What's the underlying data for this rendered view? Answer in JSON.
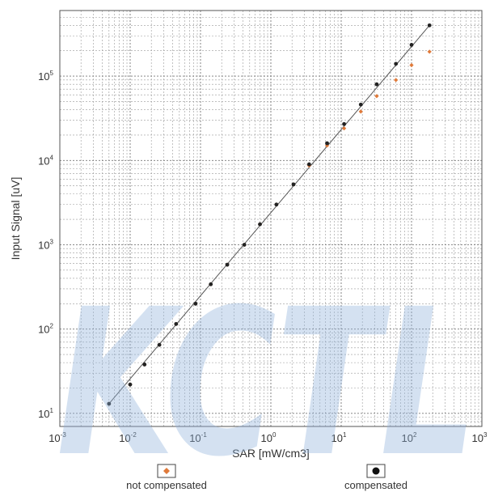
{
  "chart_data": {
    "type": "scatter",
    "xlabel": "SAR [mW/cm3]",
    "ylabel": "Input Signal [uV]",
    "x_scale": "log",
    "y_scale": "log",
    "xlim": [
      0.001,
      1000
    ],
    "ylim": [
      7,
      600000
    ],
    "x_ticks": [
      {
        "base": "10",
        "exp": "-3",
        "value": 0.001
      },
      {
        "base": "10",
        "exp": "-2",
        "value": 0.01
      },
      {
        "base": "10",
        "exp": "-1",
        "value": 0.1
      },
      {
        "base": "10",
        "exp": "0",
        "value": 1
      },
      {
        "base": "10",
        "exp": "1",
        "value": 10
      },
      {
        "base": "10",
        "exp": "2",
        "value": 100
      },
      {
        "base": "10",
        "exp": "3",
        "value": 1000
      }
    ],
    "y_ticks": [
      {
        "base": "10",
        "exp": "1",
        "value": 10
      },
      {
        "base": "10",
        "exp": "2",
        "value": 100
      },
      {
        "base": "10",
        "exp": "3",
        "value": 1000
      },
      {
        "base": "10",
        "exp": "4",
        "value": 10000
      },
      {
        "base": "10",
        "exp": "5",
        "value": 100000
      }
    ],
    "grid": true,
    "legend_position": "bottom",
    "series": [
      {
        "name": "not compensated",
        "color": "#e07a3a",
        "marker": "diamond",
        "x": [
          0.005,
          0.01,
          0.016,
          0.026,
          0.045,
          0.085,
          0.14,
          0.24,
          0.42,
          0.7,
          1.2,
          2.1,
          3.5,
          6.3,
          11,
          19,
          32,
          60,
          100,
          180
        ],
        "y": [
          13,
          22,
          38,
          65,
          115,
          200,
          340,
          580,
          1000,
          1750,
          3000,
          5200,
          8700,
          15000,
          24000,
          38000,
          58000,
          90000,
          135000,
          195000
        ]
      },
      {
        "name": "compensated",
        "color": "#222222",
        "marker": "circle",
        "x": [
          0.005,
          0.01,
          0.016,
          0.026,
          0.045,
          0.085,
          0.14,
          0.24,
          0.42,
          0.7,
          1.2,
          2.1,
          3.5,
          6.3,
          11,
          19,
          32,
          60,
          100,
          180
        ],
        "y": [
          13,
          22,
          38,
          65,
          115,
          200,
          340,
          580,
          1000,
          1750,
          3000,
          5200,
          9000,
          16000,
          27000,
          46000,
          80000,
          140000,
          235000,
          400000
        ]
      }
    ],
    "fit_line": {
      "x": [
        0.005,
        180
      ],
      "y": [
        13,
        400000
      ],
      "color": "#555555"
    }
  },
  "legend": {
    "not_compensated_label": "not compensated",
    "compensated_label": "compensated"
  },
  "watermark": {
    "text": "KCTL",
    "color": "#8fb3dd"
  }
}
